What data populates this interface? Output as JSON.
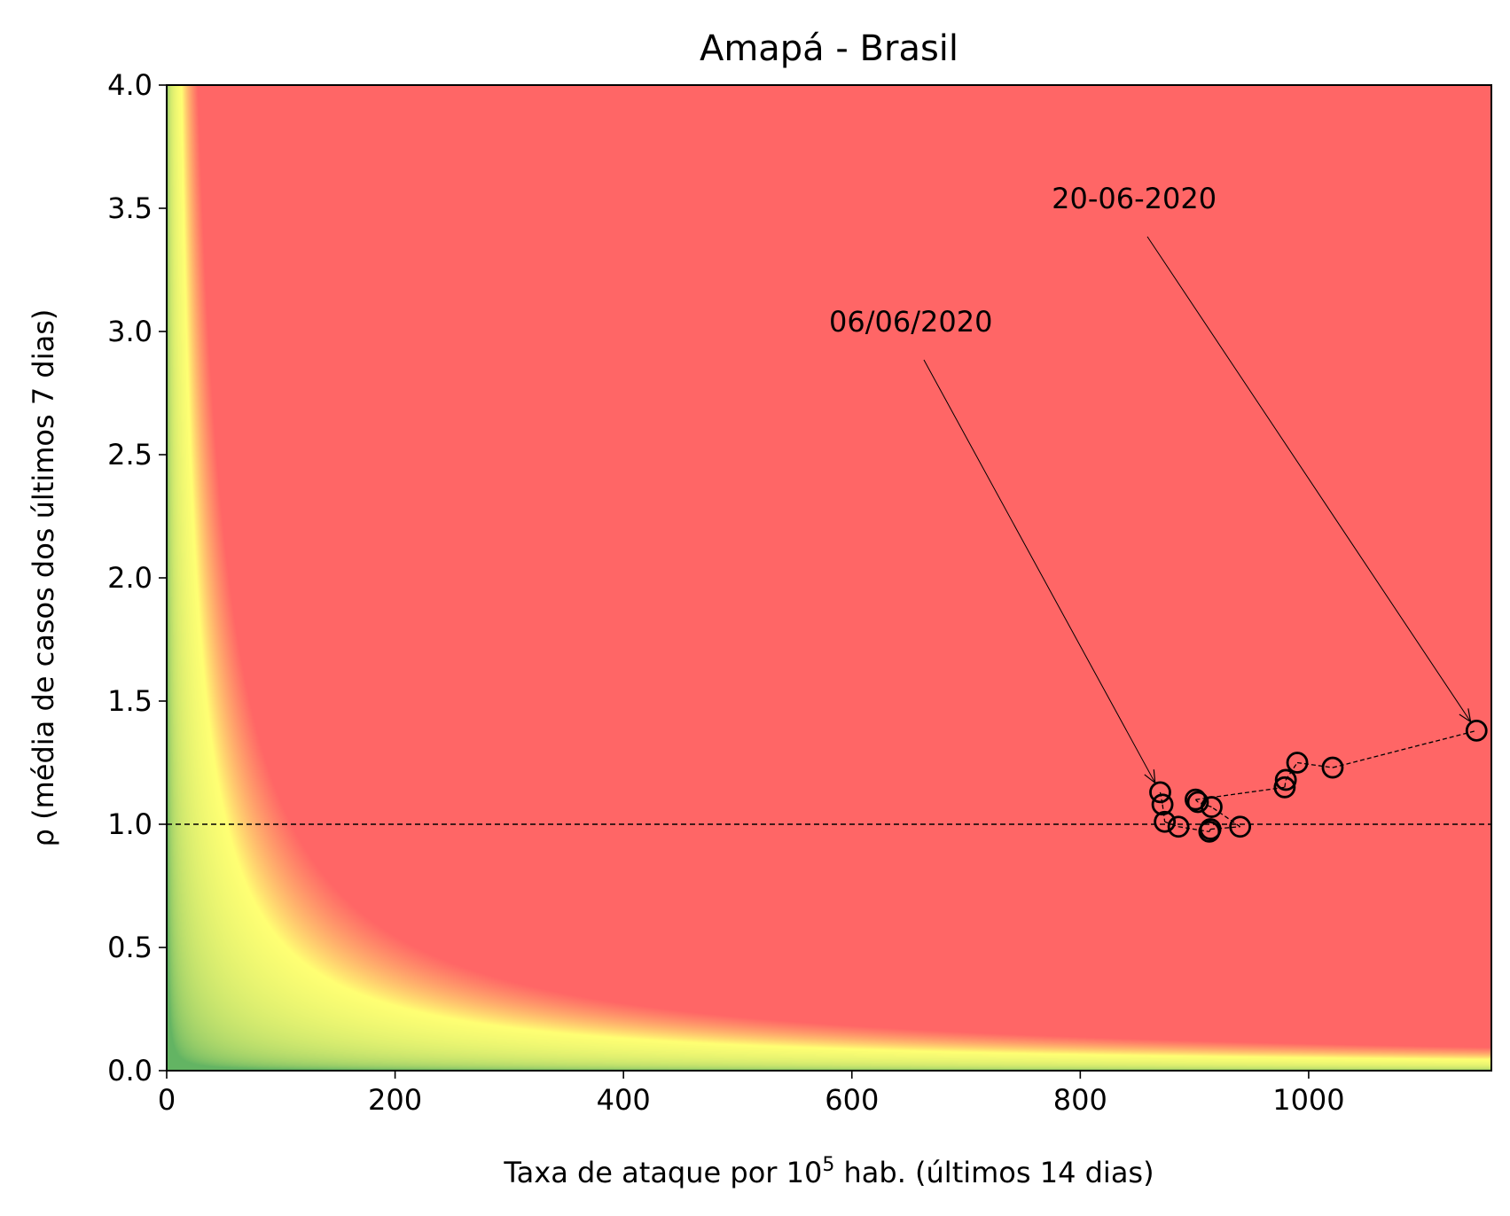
{
  "chart_data": {
    "type": "scatter",
    "title": "Amapá - Brasil",
    "xlabel": {
      "prefix": "Taxa de ataque por 10",
      "superscript": "5",
      "suffix": " hab. (últimos 14 dias)"
    },
    "ylabel": "ρ (média de casos dos últimos 7 dias)",
    "xlim": [
      0,
      1160
    ],
    "ylim": [
      0,
      4.0
    ],
    "xticks": [
      0,
      200,
      400,
      600,
      800,
      1000
    ],
    "xtick_labels": [
      "0",
      "200",
      "400",
      "600",
      "800",
      "1000"
    ],
    "yticks": [
      0.0,
      0.5,
      1.0,
      1.5,
      2.0,
      2.5,
      3.0,
      3.5,
      4.0
    ],
    "ytick_labels": [
      "0.0",
      "0.5",
      "1.0",
      "1.5",
      "2.0",
      "2.5",
      "3.0",
      "3.5",
      "4.0"
    ],
    "background": {
      "description": "risk heatmap shaded by product of x and y",
      "colors": {
        "low": "#63b463",
        "mid": "#ffff73",
        "high": "#ff6666"
      }
    },
    "reference_line": {
      "y": 1.0,
      "style": "dashed"
    },
    "points": [
      {
        "x": 870,
        "y": 1.13
      },
      {
        "x": 872,
        "y": 1.08
      },
      {
        "x": 874,
        "y": 1.01
      },
      {
        "x": 886,
        "y": 0.99
      },
      {
        "x": 913,
        "y": 0.97
      },
      {
        "x": 914,
        "y": 0.98
      },
      {
        "x": 940,
        "y": 0.99
      },
      {
        "x": 915,
        "y": 1.07
      },
      {
        "x": 903,
        "y": 1.09
      },
      {
        "x": 901,
        "y": 1.1
      },
      {
        "x": 979,
        "y": 1.15
      },
      {
        "x": 980,
        "y": 1.18
      },
      {
        "x": 990,
        "y": 1.25
      },
      {
        "x": 1021,
        "y": 1.23
      },
      {
        "x": 1147,
        "y": 1.38
      }
    ],
    "annotations": [
      {
        "text": "06/06/2020",
        "text_x": 580,
        "text_y": 3.0,
        "point_x": 870,
        "point_y": 1.13
      },
      {
        "text": "20-06-2020",
        "text_x": 775,
        "text_y": 3.5,
        "point_x": 1147,
        "point_y": 1.38
      }
    ],
    "marker_color": "#000000",
    "grid": false
  }
}
